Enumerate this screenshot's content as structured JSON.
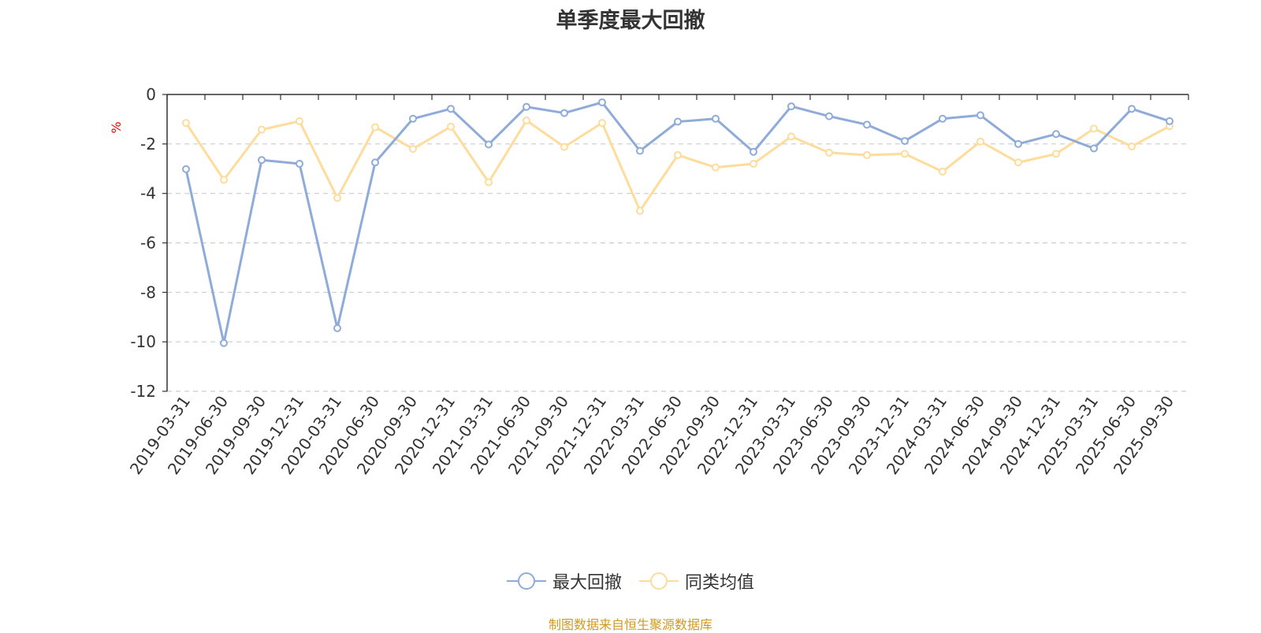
{
  "title": "单季度最大回撤",
  "source": "制图数据来自恒生聚源数据库",
  "colors": {
    "series1": "#8eabd9",
    "series2": "#fddc9c",
    "axis": "#333333",
    "grid": "#cccccc",
    "unit": "#ff0000",
    "source": "#d19a1d"
  },
  "chart_data": {
    "type": "line",
    "title": "单季度最大回撤",
    "ylabel": "%",
    "xlabel": "",
    "ylim": [
      -12,
      0
    ],
    "yticks": [
      0,
      -2,
      -4,
      -6,
      -8,
      -10,
      -12
    ],
    "grid": true,
    "legend_position": "bottom-center",
    "categories": [
      "2019-03-31",
      "2019-06-30",
      "2019-09-30",
      "2019-12-31",
      "2020-03-31",
      "2020-06-30",
      "2020-09-30",
      "2020-12-31",
      "2021-03-31",
      "2021-06-30",
      "2021-09-30",
      "2021-12-31",
      "2022-03-31",
      "2022-06-30",
      "2022-09-30",
      "2022-12-31",
      "2023-03-31",
      "2023-06-30",
      "2023-09-30",
      "2023-12-31",
      "2024-03-31",
      "2024-06-30",
      "2024-09-30",
      "2024-12-31",
      "2025-03-31",
      "2025-06-30",
      "2025-09-30"
    ],
    "series": [
      {
        "name": "最大回撤",
        "values": [
          -3.02,
          -10.05,
          -2.65,
          -2.8,
          -9.45,
          -2.75,
          -0.98,
          -0.58,
          -2.02,
          -0.5,
          -0.75,
          -0.32,
          -2.28,
          -1.1,
          -0.98,
          -2.32,
          -0.48,
          -0.88,
          -1.22,
          -1.88,
          -0.98,
          -0.84,
          -2.0,
          -1.6,
          -2.18,
          -0.58,
          -1.08
        ]
      },
      {
        "name": "同类均值",
        "values": [
          -1.15,
          -3.45,
          -1.42,
          -1.08,
          -4.18,
          -1.32,
          -2.2,
          -1.3,
          -3.55,
          -1.05,
          -2.12,
          -1.15,
          -4.7,
          -2.45,
          -2.95,
          -2.8,
          -1.7,
          -2.35,
          -2.45,
          -2.4,
          -3.12,
          -1.9,
          -2.75,
          -2.4,
          -1.38,
          -2.1,
          -1.28
        ]
      }
    ]
  }
}
